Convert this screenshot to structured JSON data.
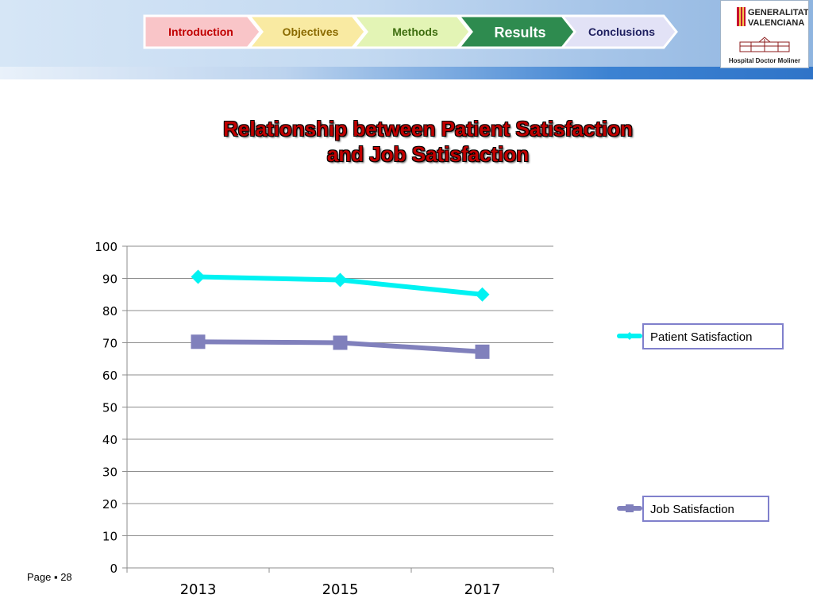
{
  "nav": {
    "steps": [
      {
        "label": "Introduction",
        "fill": "#f9c5c8",
        "text_color": "#c00000",
        "active": false
      },
      {
        "label": "Objectives",
        "fill": "#f9eaa2",
        "text_color": "#8a6a00",
        "active": false
      },
      {
        "label": "Methods",
        "fill": "#e3f4b5",
        "text_color": "#3f6e10",
        "active": false
      },
      {
        "label": "Results",
        "fill": "#2e8b4f",
        "text_color": "#ffffff",
        "active": true
      },
      {
        "label": "Conclusions",
        "fill": "#e2e2f6",
        "text_color": "#1f2060",
        "active": false
      }
    ]
  },
  "logo": {
    "line1": "GENERALITAT",
    "line2": "VALENCIANA",
    "line3": "Hospital Doctor Moliner"
  },
  "page": {
    "label": "Page ▪ 28"
  },
  "chart_data": {
    "type": "line",
    "title_lines": [
      "Relationship between Patient Satisfaction",
      "and Job Satisfaction"
    ],
    "categories": [
      "2013",
      "2015",
      "2017"
    ],
    "ylim": [
      0,
      100
    ],
    "yticks": [
      0,
      10,
      20,
      30,
      40,
      50,
      60,
      70,
      80,
      90,
      100
    ],
    "grid": true,
    "legend_position": "right",
    "series": [
      {
        "name": "Patient Satisfaction",
        "values": [
          90.5,
          89.5,
          85
        ],
        "color": "#00f2f2",
        "marker": "diamond"
      },
      {
        "name": "Job Satisfaction",
        "values": [
          70.3,
          70,
          67.2
        ],
        "color": "#8080bc",
        "marker": "square"
      }
    ]
  }
}
